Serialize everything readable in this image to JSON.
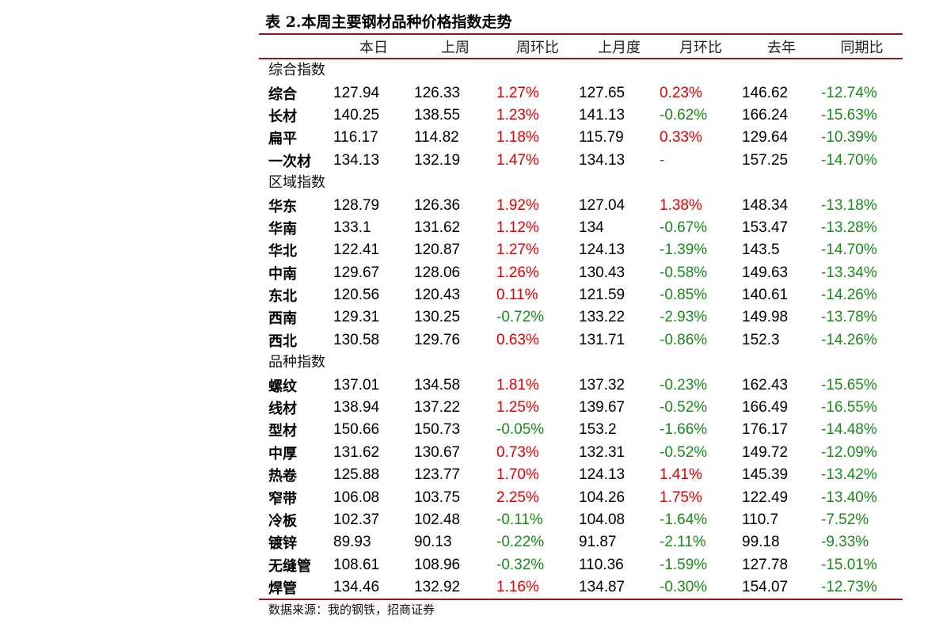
{
  "title": "表 2.本周主要钢材品种价格指数走势",
  "headers": [
    "本日",
    "上周",
    "周环比",
    "上月度",
    "月环比",
    "去年",
    "同期比"
  ],
  "colors": {
    "up": "#e00000",
    "down": "#1a8a1a",
    "rule": "#8b1a1a"
  },
  "sections": [
    {
      "label": "综合指数",
      "rows": [
        {
          "name": "综合",
          "cells": [
            "127.94",
            "126.33",
            "1.27%",
            "127.65",
            "0.23%",
            "146.62",
            "-12.74%"
          ]
        },
        {
          "name": "长材",
          "cells": [
            "140.25",
            "138.55",
            "1.23%",
            "141.13",
            "-0.62%",
            "166.24",
            "-15.63%"
          ]
        },
        {
          "name": "扁平",
          "cells": [
            "116.17",
            "114.82",
            "1.18%",
            "115.79",
            "0.33%",
            "129.64",
            "-10.39%"
          ]
        },
        {
          "name": "一次材",
          "cells": [
            "134.13",
            "132.19",
            "1.47%",
            "134.13",
            "-",
            "157.25",
            "-14.70%"
          ]
        }
      ]
    },
    {
      "label": "区域指数",
      "rows": [
        {
          "name": "华东",
          "cells": [
            "128.79",
            "126.36",
            "1.92%",
            "127.04",
            "1.38%",
            "148.34",
            "-13.18%"
          ]
        },
        {
          "name": "华南",
          "cells": [
            "133.1",
            "131.62",
            "1.12%",
            "134",
            "-0.67%",
            "153.47",
            "-13.28%"
          ]
        },
        {
          "name": "华北",
          "cells": [
            "122.41",
            "120.87",
            "1.27%",
            "124.13",
            "-1.39%",
            "143.5",
            "-14.70%"
          ]
        },
        {
          "name": "中南",
          "cells": [
            "129.67",
            "128.06",
            "1.26%",
            "130.43",
            "-0.58%",
            "149.63",
            "-13.34%"
          ]
        },
        {
          "name": "东北",
          "cells": [
            "120.56",
            "120.43",
            "0.11%",
            "121.59",
            "-0.85%",
            "140.61",
            "-14.26%"
          ]
        },
        {
          "name": "西南",
          "cells": [
            "129.31",
            "130.25",
            "-0.72%",
            "133.22",
            "-2.93%",
            "149.98",
            "-13.78%"
          ]
        },
        {
          "name": "西北",
          "cells": [
            "130.58",
            "129.76",
            "0.63%",
            "131.71",
            "-0.86%",
            "152.3",
            "-14.26%"
          ]
        }
      ]
    },
    {
      "label": "品种指数",
      "rows": [
        {
          "name": "螺纹",
          "cells": [
            "137.01",
            "134.58",
            "1.81%",
            "137.32",
            "-0.23%",
            "162.43",
            "-15.65%"
          ]
        },
        {
          "name": "线材",
          "cells": [
            "138.94",
            "137.22",
            "1.25%",
            "139.67",
            "-0.52%",
            "166.49",
            "-16.55%"
          ]
        },
        {
          "name": "型材",
          "cells": [
            "150.66",
            "150.73",
            "-0.05%",
            "153.2",
            "-1.66%",
            "176.17",
            "-14.48%"
          ]
        },
        {
          "name": "中厚",
          "cells": [
            "131.62",
            "130.67",
            "0.73%",
            "132.31",
            "-0.52%",
            "149.72",
            "-12.09%"
          ]
        },
        {
          "name": "热卷",
          "cells": [
            "125.88",
            "123.77",
            "1.70%",
            "124.13",
            "1.41%",
            "145.39",
            "-13.42%"
          ]
        },
        {
          "name": "窄带",
          "cells": [
            "106.08",
            "103.75",
            "2.25%",
            "104.26",
            "1.75%",
            "122.49",
            "-13.40%"
          ]
        },
        {
          "name": "冷板",
          "cells": [
            "102.37",
            "102.48",
            "-0.11%",
            "104.08",
            "-1.64%",
            "110.7",
            "-7.52%"
          ]
        },
        {
          "name": "镀锌",
          "cells": [
            "89.93",
            "90.13",
            "-0.22%",
            "91.87",
            "-2.11%",
            "99.18",
            "-9.33%"
          ]
        },
        {
          "name": "无缝管",
          "cells": [
            "108.61",
            "108.96",
            "-0.32%",
            "110.36",
            "-1.59%",
            "127.78",
            "-15.01%"
          ]
        },
        {
          "name": "焊管",
          "cells": [
            "134.46",
            "132.92",
            "1.16%",
            "134.87",
            "-0.30%",
            "154.07",
            "-12.73%"
          ]
        }
      ]
    }
  ],
  "source": "数据来源：我的钢铁，招商证券"
}
